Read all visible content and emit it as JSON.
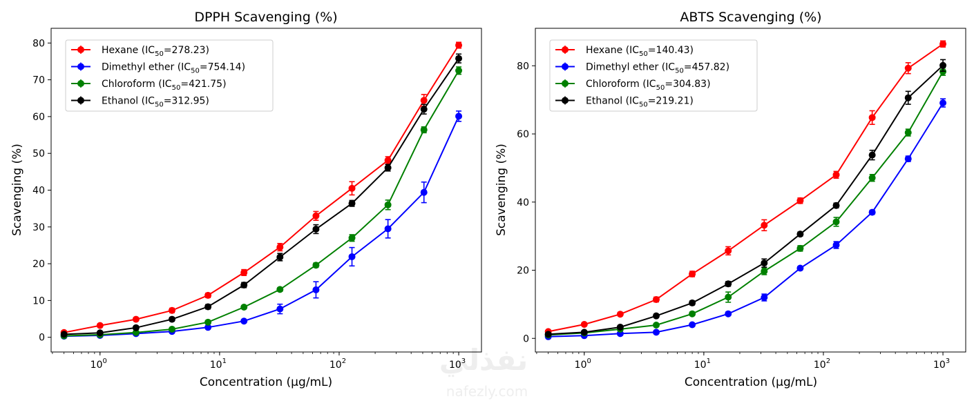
{
  "watermark": {
    "arabic": "نفذلي",
    "latin": "nafezly.com"
  },
  "chart_data": [
    {
      "type": "line",
      "title": "DPPH Scavenging (%)",
      "xlabel": "Concentration (μg/mL)",
      "ylabel": "Scavenging (%)",
      "xscale": "log",
      "xlim": [
        0.39,
        1550
      ],
      "ylim": [
        -4,
        84
      ],
      "yticks": [
        0,
        10,
        20,
        30,
        40,
        50,
        60,
        70,
        80
      ],
      "xticks": [
        1,
        10,
        100,
        1000
      ],
      "xtick_labels": [
        {
          "base": "10",
          "exp": "0"
        },
        {
          "base": "10",
          "exp": "1"
        },
        {
          "base": "10",
          "exp": "2"
        },
        {
          "base": "10",
          "exp": "3"
        }
      ],
      "grid": false,
      "legend": "top-left",
      "x": [
        0.5,
        1,
        2,
        4,
        8,
        16,
        32,
        64,
        128,
        256,
        512,
        1000
      ],
      "series": [
        {
          "name": "Hexane",
          "ic50": "278.23",
          "color": "#ff0000",
          "values": [
            1.3,
            3.2,
            4.9,
            7.3,
            11.4,
            17.6,
            24.5,
            33.0,
            40.5,
            48.1,
            64.4,
            79.4
          ],
          "errors": [
            0.3,
            0.4,
            0.4,
            0.6,
            0.6,
            0.8,
            1.0,
            1.2,
            1.8,
            1.0,
            1.6,
            0.8
          ]
        },
        {
          "name": "Dimethyl ether",
          "ic50": "754.14",
          "color": "#0000ff",
          "values": [
            0.3,
            0.5,
            1.0,
            1.6,
            2.7,
            4.4,
            7.7,
            12.9,
            21.9,
            29.5,
            39.4,
            60.1
          ],
          "errors": [
            0.2,
            0.2,
            0.2,
            0.3,
            0.4,
            0.4,
            1.3,
            2.2,
            2.5,
            2.5,
            2.8,
            1.4
          ]
        },
        {
          "name": "Chloroform",
          "ic50": "421.75",
          "color": "#008000",
          "values": [
            0.4,
            0.7,
            1.3,
            2.2,
            4.1,
            8.2,
            13.0,
            19.6,
            27.0,
            36.0,
            56.4,
            72.5
          ],
          "errors": [
            0.2,
            0.2,
            0.2,
            0.3,
            0.3,
            0.4,
            0.5,
            0.6,
            0.9,
            1.3,
            0.8,
            1.0
          ]
        },
        {
          "name": "Ethanol",
          "ic50": "312.95",
          "color": "#000000",
          "values": [
            0.8,
            1.2,
            2.6,
            4.9,
            8.3,
            14.2,
            21.8,
            29.4,
            36.4,
            46.1,
            62.0,
            75.8
          ],
          "errors": [
            0.3,
            0.3,
            0.4,
            0.5,
            0.6,
            0.7,
            1.0,
            1.2,
            0.8,
            0.9,
            1.3,
            1.2
          ]
        }
      ]
    },
    {
      "type": "line",
      "title": "ABTS Scavenging (%)",
      "xlabel": "Concentration (μg/mL)",
      "ylabel": "Scavenging (%)",
      "xscale": "log",
      "xlim": [
        0.39,
        1550
      ],
      "ylim": [
        -4,
        91
      ],
      "yticks": [
        0,
        20,
        40,
        60,
        80
      ],
      "xticks": [
        1,
        10,
        100,
        1000
      ],
      "xtick_labels": [
        {
          "base": "10",
          "exp": "0"
        },
        {
          "base": "10",
          "exp": "1"
        },
        {
          "base": "10",
          "exp": "2"
        },
        {
          "base": "10",
          "exp": "3"
        }
      ],
      "grid": false,
      "legend": "top-left",
      "x": [
        0.5,
        1,
        2,
        4,
        8,
        16,
        32,
        64,
        128,
        256,
        512,
        1000
      ],
      "series": [
        {
          "name": "Hexane",
          "ic50": "140.43",
          "color": "#ff0000",
          "values": [
            2.0,
            4.1,
            7.1,
            11.4,
            18.9,
            25.7,
            33.2,
            40.4,
            48.0,
            64.8,
            79.3,
            86.4
          ],
          "errors": [
            0.3,
            0.4,
            0.5,
            0.7,
            0.8,
            1.2,
            1.6,
            0.8,
            1.0,
            2.0,
            1.6,
            0.9
          ]
        },
        {
          "name": "Dimethyl ether",
          "ic50": "457.82",
          "color": "#0000ff",
          "values": [
            0.5,
            0.8,
            1.4,
            1.8,
            4.0,
            7.2,
            12.0,
            20.6,
            27.4,
            37.0,
            52.7,
            69.1
          ],
          "errors": [
            0.2,
            0.2,
            0.2,
            0.3,
            0.3,
            0.5,
            1.0,
            0.5,
            1.0,
            0.6,
            0.8,
            1.2
          ]
        },
        {
          "name": "Chloroform",
          "ic50": "304.83",
          "color": "#008000",
          "values": [
            1.0,
            1.6,
            2.7,
            3.9,
            7.2,
            12.1,
            19.7,
            26.4,
            34.2,
            47.1,
            60.4,
            78.3
          ],
          "errors": [
            0.2,
            0.3,
            0.3,
            0.4,
            0.5,
            1.5,
            1.0,
            0.8,
            1.3,
            1.0,
            1.0,
            1.1
          ]
        },
        {
          "name": "Ethanol",
          "ic50": "219.21",
          "color": "#000000",
          "values": [
            1.2,
            1.8,
            3.3,
            6.6,
            10.4,
            16.0,
            22.1,
            30.6,
            39.0,
            53.8,
            70.6,
            80.1
          ],
          "errors": [
            0.3,
            0.3,
            0.4,
            0.5,
            0.6,
            0.7,
            1.2,
            0.6,
            0.7,
            1.4,
            1.9,
            1.7
          ]
        }
      ]
    }
  ]
}
